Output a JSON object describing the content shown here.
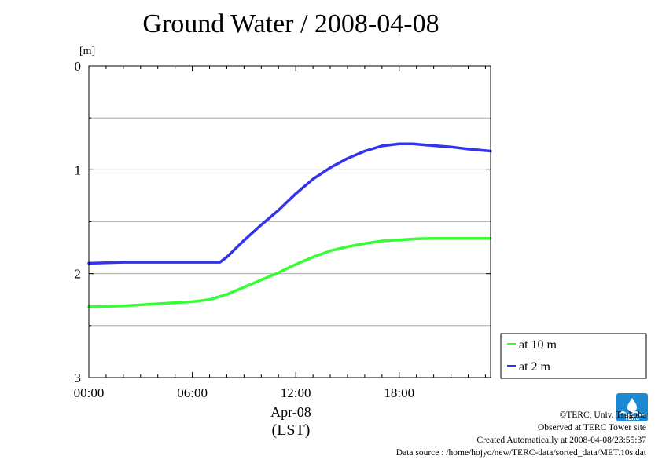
{
  "chart_data": {
    "type": "line",
    "title": "Ground Water / 2008-04-08",
    "ylabel": "[m]",
    "xlabel": "Apr-08",
    "xlabel2": "(LST)",
    "xlim": [
      0,
      23.3
    ],
    "ylim": [
      0,
      3
    ],
    "y_inverted": true,
    "grid": true,
    "legend_placement": "right",
    "x_ticks": [
      {
        "value": 0,
        "label": "00:00"
      },
      {
        "value": 6,
        "label": "06:00"
      },
      {
        "value": 12,
        "label": "12:00"
      },
      {
        "value": 18,
        "label": "18:00"
      }
    ],
    "y_ticks": [
      {
        "value": 0,
        "label": "0"
      },
      {
        "value": 1,
        "label": "1"
      },
      {
        "value": 2,
        "label": "2"
      },
      {
        "value": 3,
        "label": "3"
      }
    ],
    "series": [
      {
        "name": "at 10 m",
        "color": "#33ff33",
        "x": [
          0,
          2,
          4,
          6,
          7,
          8,
          9,
          10,
          11,
          12,
          13,
          14,
          15,
          16,
          17,
          18,
          19,
          20,
          21,
          22,
          23.3
        ],
        "values": [
          2.32,
          2.31,
          2.29,
          2.27,
          2.25,
          2.2,
          2.13,
          2.06,
          1.99,
          1.91,
          1.84,
          1.78,
          1.74,
          1.71,
          1.685,
          1.675,
          1.665,
          1.66,
          1.66,
          1.66,
          1.66
        ]
      },
      {
        "name": "at 2 m",
        "color": "#3333ee",
        "x": [
          0,
          2,
          4,
          6,
          7,
          7.6,
          8,
          9,
          10,
          11,
          12,
          13,
          14,
          15,
          16,
          17,
          18,
          18.8,
          19.5,
          21,
          22,
          23.3
        ],
        "values": [
          1.9,
          1.89,
          1.89,
          1.89,
          1.89,
          1.89,
          1.84,
          1.68,
          1.53,
          1.39,
          1.23,
          1.09,
          0.98,
          0.89,
          0.82,
          0.77,
          0.75,
          0.75,
          0.76,
          0.78,
          0.8,
          0.82
        ]
      }
    ]
  },
  "footer": {
    "copyright": "©TERC, Univ. Tsukuba",
    "observed": "Observed at TERC Tower site",
    "created": "Created Automatically at 2008-04-08/23:55:37",
    "source": "Data source : /home/hojyo/new/TERC-data/sorted_data/MET.10s.dat"
  },
  "logo": {
    "text": "TERC",
    "color": "#1a8ad4"
  }
}
